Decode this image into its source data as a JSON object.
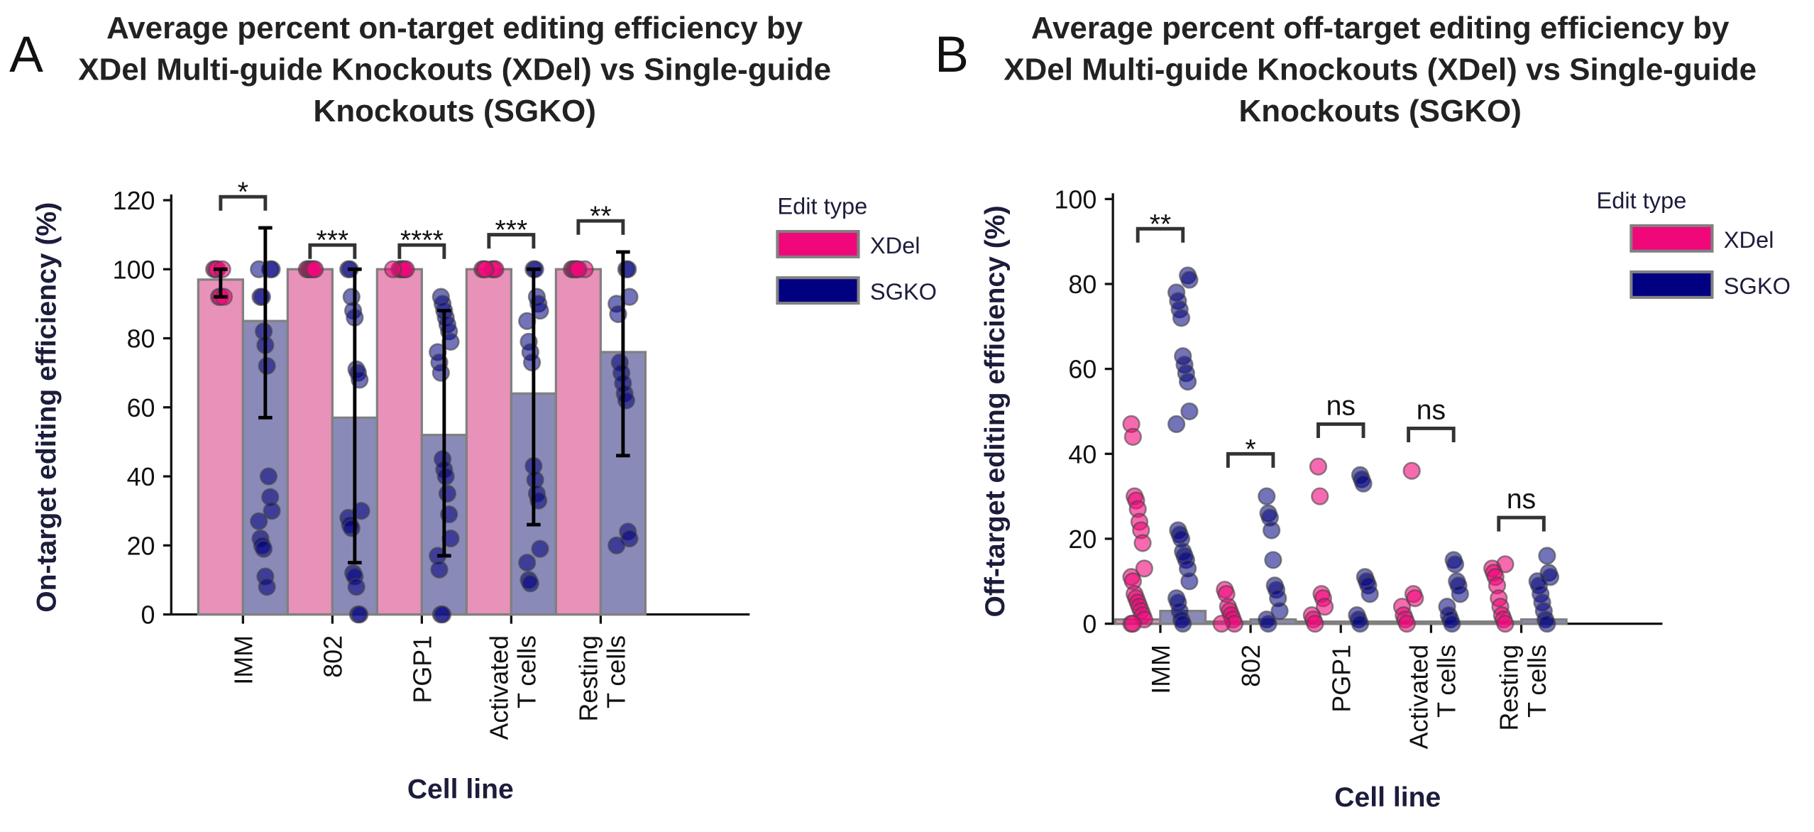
{
  "colors": {
    "xdel_bar": "#e891b9",
    "sgko_bar": "#8a8ab8",
    "xdel_point": "#f0077a",
    "sgko_point": "#000080",
    "edge": "#808080"
  },
  "chart_data": [
    {
      "panel_label": "A",
      "type": "bar",
      "title_lines": [
        "Average percent on-target editing efficiency by",
        "XDel Multi-guide Knockouts (XDel) vs Single-guide",
        "Knockouts (SGKO)"
      ],
      "xlabel": "Cell line",
      "ylabel": "On-target editing efficiency (%)",
      "ylim": [
        0,
        120
      ],
      "yticks": [
        0,
        20,
        40,
        60,
        80,
        100,
        120
      ],
      "categories": [
        [
          "IMM"
        ],
        [
          "802"
        ],
        [
          "PGP1"
        ],
        [
          "Activated",
          "T cells"
        ],
        [
          "Resting",
          "T cells"
        ]
      ],
      "legend": {
        "title": "Edit type",
        "placement": "right",
        "entries": [
          "XDel",
          "SGKO"
        ]
      },
      "series": [
        {
          "name": "XDel",
          "values": [
            97,
            100,
            100,
            100,
            100
          ],
          "error": [
            [
              92,
              100
            ],
            null,
            null,
            null,
            null
          ],
          "points": [
            [
              100,
              100,
              100,
              92,
              92,
              100,
              92
            ],
            [
              100,
              100,
              100,
              100,
              100,
              100
            ],
            [
              100,
              100,
              100,
              100,
              100,
              100
            ],
            [
              100,
              100,
              100,
              100,
              100,
              100
            ],
            [
              100,
              100,
              100,
              100,
              100,
              100
            ]
          ]
        },
        {
          "name": "SGKO",
          "values": [
            85,
            57,
            52,
            64,
            76
          ],
          "error": [
            [
              57,
              112
            ],
            [
              15,
              100
            ],
            [
              17,
              88
            ],
            [
              26,
              100
            ],
            [
              46,
              105
            ]
          ],
          "points": [
            [
              100,
              100,
              100,
              92,
              92,
              82,
              78,
              72,
              40,
              34,
              30,
              27,
              22,
              20,
              19,
              11,
              8
            ],
            [
              100,
              100,
              92,
              88,
              86,
              71,
              70,
              68,
              30,
              28,
              26,
              25,
              12,
              11,
              8,
              0,
              0
            ],
            [
              92,
              90,
              88,
              86,
              84,
              82,
              79,
              76,
              73,
              70,
              45,
              42,
              40,
              35,
              29,
              22,
              17,
              13,
              0,
              0
            ],
            [
              100,
              100,
              92,
              90,
              88,
              85,
              79,
              76,
              73,
              43,
              39,
              35,
              33,
              19,
              15,
              10,
              9
            ],
            [
              100,
              100,
              92,
              90,
              87,
              73,
              70,
              67,
              64,
              62,
              24,
              22,
              20
            ]
          ]
        }
      ],
      "significance": [
        {
          "label": "*",
          "y": 121
        },
        {
          "label": "***",
          "y": 107
        },
        {
          "label": "****",
          "y": 107
        },
        {
          "label": "***",
          "y": 110
        },
        {
          "label": "**",
          "y": 114
        }
      ]
    },
    {
      "panel_label": "B",
      "type": "bar",
      "title_lines": [
        "Average percent off-target editing efficiency by",
        "XDel Multi-guide Knockouts (XDel) vs Single-guide",
        "Knockouts (SGKO)"
      ],
      "xlabel": "Cell line",
      "ylabel": "Off-target editing efficiency (%)",
      "ylim": [
        0,
        100
      ],
      "yticks": [
        0,
        20,
        40,
        60,
        80,
        100
      ],
      "categories": [
        [
          "IMM"
        ],
        [
          "802"
        ],
        [
          "PGP1"
        ],
        [
          "Activated",
          "T cells"
        ],
        [
          "Resting",
          "T cells"
        ]
      ],
      "legend": {
        "title": "Edit type",
        "placement": "right",
        "entries": [
          "XDel",
          "SGKO"
        ]
      },
      "series": [
        {
          "name": "XDel",
          "values": [
            1,
            0.5,
            0.5,
            0.5,
            0.5
          ],
          "error": [
            null,
            null,
            null,
            null,
            null
          ],
          "points": [
            [
              47,
              44,
              30,
              29,
              27,
              24,
              22,
              19,
              13,
              11,
              10,
              7,
              6,
              5,
              4,
              3,
              2,
              1,
              0,
              0
            ],
            [
              8,
              7,
              4,
              3,
              2,
              1,
              0,
              0
            ],
            [
              37,
              30,
              7,
              6,
              4,
              2,
              1,
              0
            ],
            [
              36,
              7,
              6,
              4,
              2,
              1,
              0
            ],
            [
              14,
              13,
              12,
              11,
              9,
              6,
              4,
              2,
              1,
              0
            ]
          ]
        },
        {
          "name": "SGKO",
          "values": [
            3,
            1,
            0.5,
            0.5,
            1
          ],
          "error": [
            null,
            null,
            null,
            null,
            null
          ],
          "points": [
            [
              82,
              81,
              78,
              76,
              74,
              72,
              63,
              61,
              59,
              57,
              50,
              47,
              22,
              21,
              20,
              17,
              16,
              15,
              13,
              10,
              6,
              5,
              3,
              1,
              0
            ],
            [
              30,
              26,
              25,
              22,
              15,
              9,
              8,
              6,
              3,
              1,
              0
            ],
            [
              35,
              34,
              33,
              11,
              10,
              9,
              7,
              2,
              1,
              0
            ],
            [
              15,
              14,
              10,
              9,
              7,
              4,
              2,
              1,
              0
            ],
            [
              16,
              12,
              11,
              10,
              9,
              7,
              5,
              3,
              1,
              0
            ]
          ]
        }
      ],
      "significance": [
        {
          "label": "**",
          "y": 93
        },
        {
          "label": "*",
          "y": 40
        },
        {
          "label": "ns",
          "y": 47
        },
        {
          "label": "ns",
          "y": 46
        },
        {
          "label": "ns",
          "y": 25
        }
      ]
    }
  ]
}
